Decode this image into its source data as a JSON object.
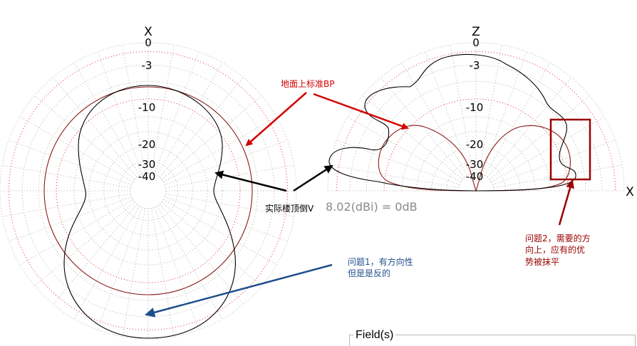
{
  "left_plot": {
    "axis_top": "X",
    "ring_labels": [
      "0",
      "-3",
      "-10",
      "-20",
      "-30",
      "-40"
    ]
  },
  "right_plot": {
    "axis_top": "Z",
    "axis_right": "X",
    "ring_labels": [
      "0",
      "-3",
      "-10",
      "-20",
      "-30",
      "-40"
    ]
  },
  "annotations": {
    "ground_bp": "地面上标准BP",
    "actual_v": "实际楼顶倒V",
    "gain_reference": "8.02(dBi) = 0dB",
    "problem1_line1": "问题1，有方向性",
    "problem1_line2": "但是是反的",
    "problem2_line1": "问题2，需要的方",
    "problem2_line2": "向上，应有的优",
    "problem2_line3": "势被抹平"
  },
  "panel": {
    "field_title": "Field(s)"
  },
  "colors": {
    "grid_dotted": "#b0b0b0",
    "grid_red": "#e03030",
    "standard_pattern": "#8b1a1a",
    "actual_pattern": "#000000",
    "arrow_red": "#d40000",
    "arrow_dark_red": "#9a0000",
    "arrow_blue": "#1f4e8c",
    "highlight_box": "#9a0000"
  }
}
